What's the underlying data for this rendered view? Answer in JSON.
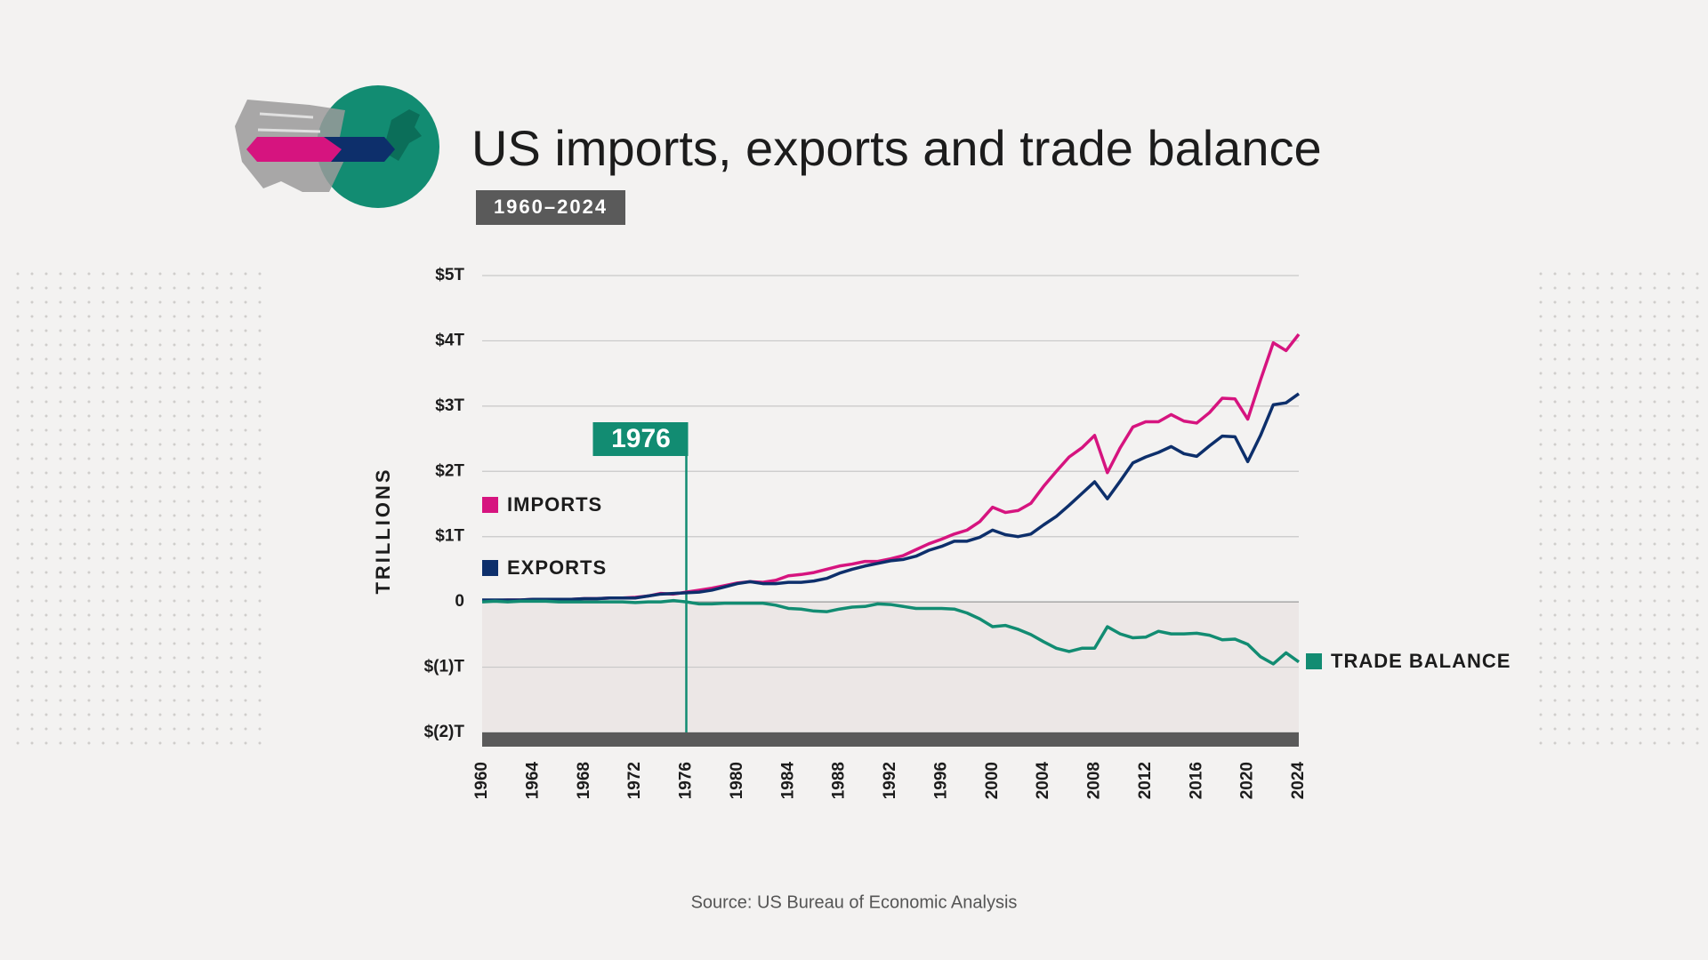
{
  "chart_data": {
    "type": "line",
    "title": "US imports, exports and trade balance",
    "subtitle": "1960–2024",
    "ylabel": "TRILLIONS",
    "source": "Source: US Bureau of Economic Analysis",
    "annotation": {
      "label": "1976",
      "x": 1976
    },
    "x": [
      1960,
      1961,
      1962,
      1963,
      1964,
      1965,
      1966,
      1967,
      1968,
      1969,
      1970,
      1971,
      1972,
      1973,
      1974,
      1975,
      1976,
      1977,
      1978,
      1979,
      1980,
      1981,
      1982,
      1983,
      1984,
      1985,
      1986,
      1987,
      1988,
      1989,
      1990,
      1991,
      1992,
      1993,
      1994,
      1995,
      1996,
      1997,
      1998,
      1999,
      2000,
      2001,
      2002,
      2003,
      2004,
      2005,
      2006,
      2007,
      2008,
      2009,
      2010,
      2011,
      2012,
      2013,
      2014,
      2015,
      2016,
      2017,
      2018,
      2019,
      2020,
      2021,
      2022,
      2023,
      2024
    ],
    "xlim": [
      1960,
      2024
    ],
    "xticks": [
      1960,
      1964,
      1968,
      1972,
      1976,
      1980,
      1984,
      1988,
      1992,
      1996,
      2000,
      2004,
      2008,
      2012,
      2016,
      2020,
      2024
    ],
    "ylim": [
      -2,
      5
    ],
    "yticks": [
      {
        "value": -2,
        "label": "$(2)T"
      },
      {
        "value": -1,
        "label": "$(1)T"
      },
      0,
      {
        "value": 1,
        "label": "$1T"
      },
      {
        "value": 2,
        "label": "$2T"
      },
      {
        "value": 3,
        "label": "$3T"
      },
      {
        "value": 4,
        "label": "$4T"
      },
      {
        "value": 5,
        "label": "$5T"
      }
    ],
    "grid": true,
    "series": [
      {
        "name": "IMPORTS",
        "color": "#d6147f",
        "values": [
          0.02,
          0.02,
          0.03,
          0.03,
          0.04,
          0.04,
          0.04,
          0.04,
          0.05,
          0.05,
          0.06,
          0.06,
          0.07,
          0.09,
          0.13,
          0.12,
          0.15,
          0.18,
          0.21,
          0.25,
          0.29,
          0.31,
          0.3,
          0.33,
          0.4,
          0.42,
          0.45,
          0.5,
          0.55,
          0.58,
          0.62,
          0.62,
          0.66,
          0.71,
          0.8,
          0.89,
          0.96,
          1.04,
          1.1,
          1.23,
          1.45,
          1.37,
          1.4,
          1.51,
          1.77,
          2.0,
          2.22,
          2.36,
          2.55,
          1.98,
          2.36,
          2.68,
          2.76,
          2.76,
          2.87,
          2.77,
          2.74,
          2.9,
          3.12,
          3.11,
          2.8,
          3.4,
          3.97,
          3.85,
          4.1
        ]
      },
      {
        "name": "EXPORTS",
        "color": "#0d2f6b",
        "values": [
          0.03,
          0.03,
          0.03,
          0.03,
          0.04,
          0.04,
          0.04,
          0.04,
          0.05,
          0.05,
          0.06,
          0.06,
          0.06,
          0.09,
          0.12,
          0.13,
          0.14,
          0.15,
          0.18,
          0.23,
          0.28,
          0.31,
          0.28,
          0.28,
          0.3,
          0.3,
          0.32,
          0.36,
          0.44,
          0.5,
          0.55,
          0.59,
          0.63,
          0.65,
          0.7,
          0.79,
          0.85,
          0.93,
          0.93,
          0.99,
          1.1,
          1.03,
          1.0,
          1.04,
          1.18,
          1.31,
          1.48,
          1.66,
          1.84,
          1.58,
          1.85,
          2.13,
          2.22,
          2.29,
          2.38,
          2.27,
          2.23,
          2.39,
          2.54,
          2.53,
          2.15,
          2.55,
          3.02,
          3.05,
          3.19
        ]
      },
      {
        "name": "TRADE BALANCE",
        "color": "#128c72",
        "values": [
          0.0,
          0.01,
          0.0,
          0.01,
          0.01,
          0.01,
          0.0,
          0.0,
          0.0,
          0.0,
          0.0,
          0.0,
          -0.01,
          0.0,
          0.0,
          0.02,
          0.0,
          -0.03,
          -0.03,
          -0.02,
          -0.02,
          -0.02,
          -0.02,
          -0.05,
          -0.1,
          -0.11,
          -0.14,
          -0.15,
          -0.11,
          -0.08,
          -0.07,
          -0.03,
          -0.04,
          -0.07,
          -0.1,
          -0.1,
          -0.1,
          -0.11,
          -0.17,
          -0.26,
          -0.38,
          -0.36,
          -0.42,
          -0.5,
          -0.61,
          -0.71,
          -0.76,
          -0.71,
          -0.71,
          -0.38,
          -0.49,
          -0.55,
          -0.54,
          -0.45,
          -0.49,
          -0.49,
          -0.48,
          -0.51,
          -0.58,
          -0.57,
          -0.65,
          -0.84,
          -0.95,
          -0.78,
          -0.92
        ]
      }
    ]
  }
}
